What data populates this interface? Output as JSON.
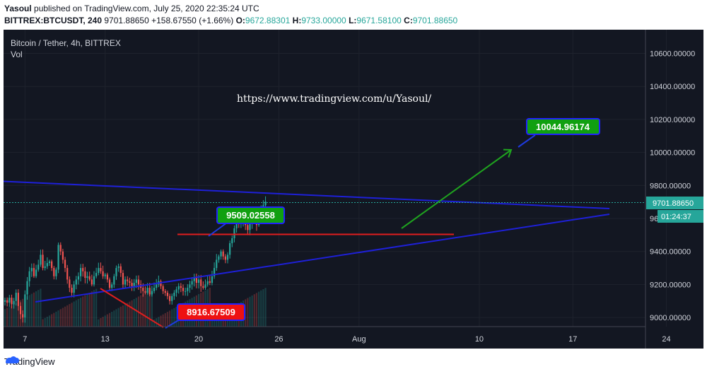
{
  "header": {
    "author": "Yasoul",
    "published_text": "published on TradingView.com, July 25, 2020 22:35:24 UTC",
    "symbol_line": "BITTREX:BTCUSDT, 240",
    "last_price": "9701.88650",
    "change": "+158.67550 (+1.66%)",
    "open_label": "O:",
    "open": "9672.88301",
    "high_label": "H:",
    "high": "9733.00000",
    "low_label": "L:",
    "low": "9671.58100",
    "close_label": "C:",
    "close": "9701.88650"
  },
  "chart_legend": {
    "title": "Bitcoin / Tether, 4h, BITTREX",
    "vol_label": "Vol"
  },
  "watermark_url": "https://www.tradingview.com/u/Yasoul/",
  "price_axis": {
    "ticks": [
      "10600.00000",
      "10400.00000",
      "10200.00000",
      "10000.00000",
      "9800.00000",
      "9600.00000",
      "9400.00000",
      "9200.00000",
      "9000.00000"
    ],
    "current_price": "9701.88650",
    "countdown": "01:24:37"
  },
  "time_axis": {
    "ticks": [
      "7",
      "13",
      "20",
      "26",
      "Aug",
      "10",
      "17",
      "24"
    ]
  },
  "annotations": {
    "target_label": "10044.96174",
    "mid_label": "9509.02558",
    "low_label": "8916.67509"
  },
  "footer": {
    "brand": "TradingView"
  },
  "colors": {
    "background": "#131722",
    "up": "#26a69a",
    "down": "#ef5350",
    "trendline": "#1e20d8",
    "support": "#e01e1e",
    "arrow": "#1fa31f",
    "label_green": "#10a010",
    "label_red": "#ee1111"
  },
  "chart_data": {
    "type": "candlestick",
    "title": "Bitcoin / Tether, 4h, BITTREX",
    "x_start": "2020-07-05 12:00",
    "interval": "4h",
    "ylim": [
      8940,
      10760
    ],
    "close": [
      9105,
      9090,
      9120,
      9080,
      9100,
      9150,
      9070,
      9020,
      9000,
      9140,
      9220,
      9280,
      9300,
      9250,
      9290,
      9320,
      9380,
      9300,
      9310,
      9330,
      9340,
      9300,
      9250,
      9290,
      9440,
      9400,
      9350,
      9300,
      9230,
      9180,
      9150,
      9200,
      9230,
      9250,
      9300,
      9280,
      9240,
      9250,
      9230,
      9200,
      9250,
      9270,
      9300,
      9280,
      9250,
      9260,
      9230,
      9180,
      9200,
      9250,
      9300,
      9310,
      9270,
      9200,
      9230,
      9220,
      9210,
      9190,
      9210,
      9230,
      9200,
      9180,
      9160,
      9150,
      9180,
      9140,
      9160,
      9180,
      9200,
      9220,
      9190,
      9160,
      9150,
      9130,
      9100,
      9130,
      9150,
      9170,
      9190,
      9180,
      9160,
      9160,
      9180,
      9200,
      9220,
      9240,
      9210,
      9230,
      9190,
      9180,
      9200,
      9220,
      9210,
      9250,
      9300,
      9350,
      9370,
      9400,
      9370,
      9350,
      9380,
      9450,
      9480,
      9540,
      9590,
      9570,
      9580,
      9600,
      9560,
      9530,
      9570,
      9610,
      9600,
      9560,
      9610,
      9650,
      9680,
      9702
    ]
  }
}
